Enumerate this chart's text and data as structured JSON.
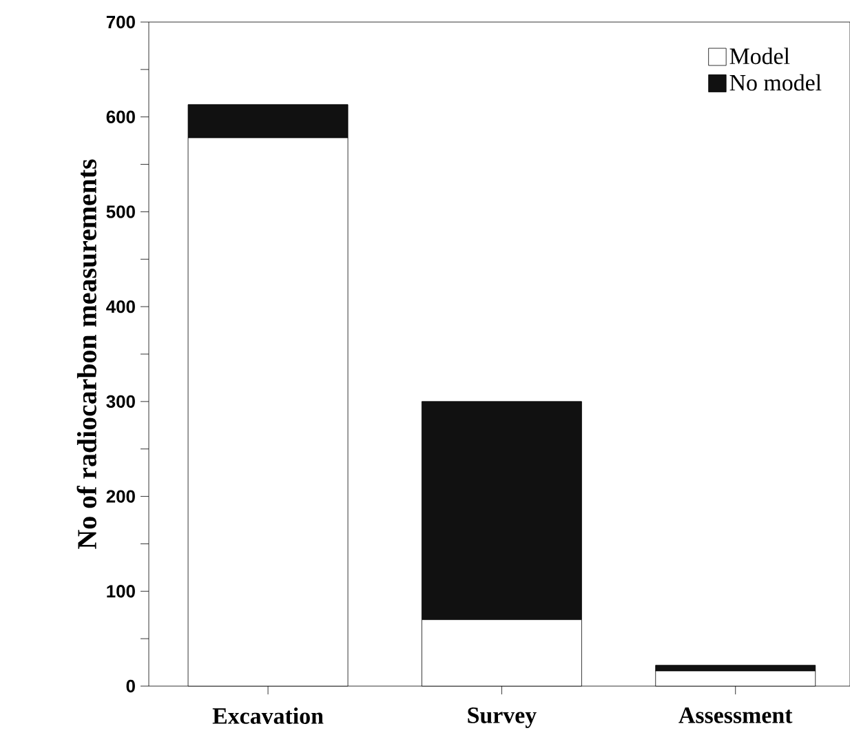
{
  "chart_data": {
    "type": "bar",
    "stacked": true,
    "ylabel": "No of radiocarbon measurements",
    "categories": [
      "Excavation",
      "Survey",
      "Assessment"
    ],
    "series": [
      {
        "name": "Model",
        "color": "#ffffff",
        "values": [
          578,
          70,
          16
        ]
      },
      {
        "name": "No model",
        "color": "#111111",
        "values": [
          35,
          230,
          6
        ]
      }
    ],
    "ylim": [
      0,
      700
    ],
    "yticks": [
      0,
      {
        "value": 50,
        "label": null
      },
      100,
      {
        "value": 150,
        "label": null
      },
      200,
      {
        "value": 250,
        "label": null
      },
      300,
      {
        "value": 350,
        "label": null
      },
      400,
      {
        "value": 450,
        "label": null
      },
      500,
      {
        "value": 550,
        "label": null
      },
      600,
      {
        "value": 650,
        "label": null
      },
      700
    ],
    "legend": "top right"
  }
}
